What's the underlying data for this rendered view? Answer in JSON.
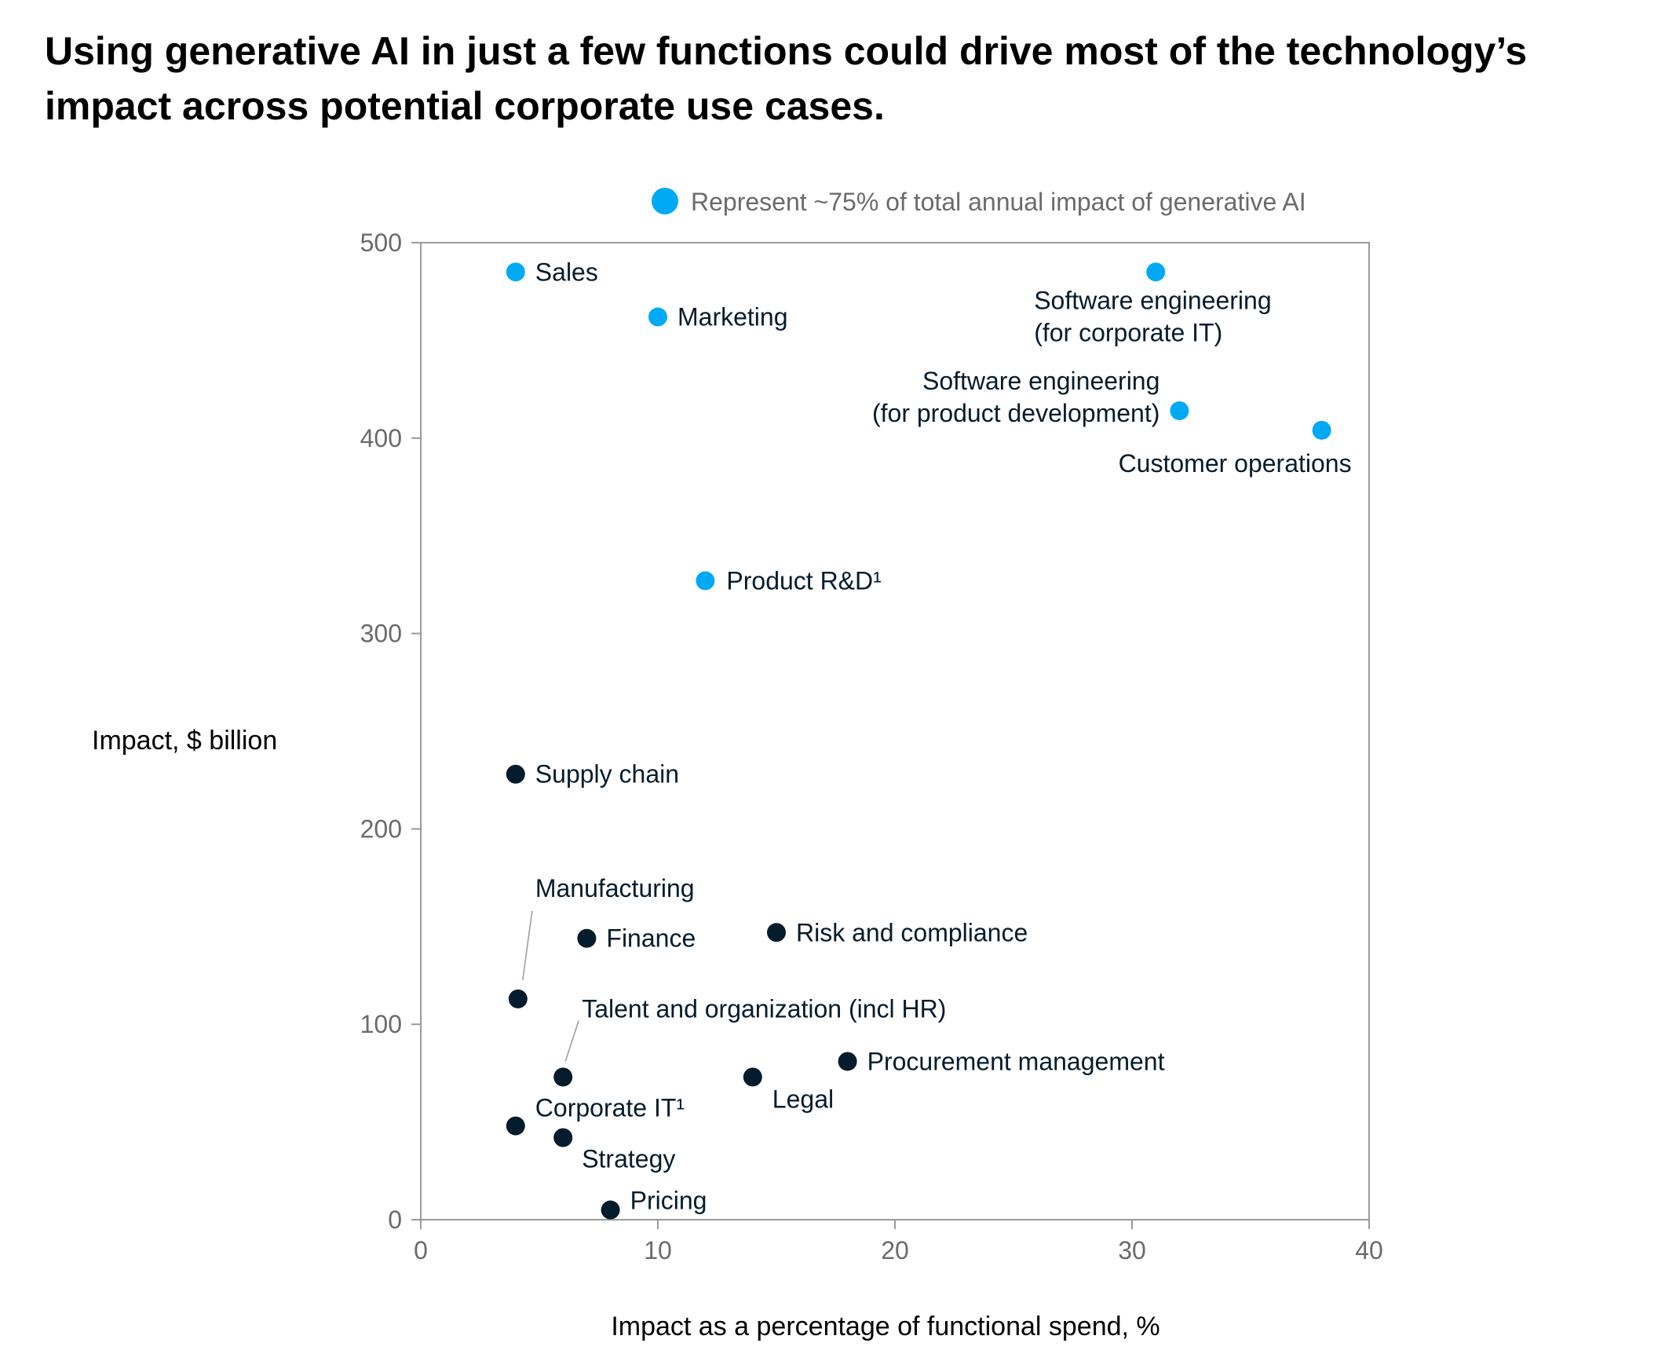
{
  "title": "Using generative AI in just a few functions could drive most of the technology’s impact across potential corporate use cases.",
  "legend": {
    "label": "Represent ~75% of total annual impact of generative AI",
    "color": "#00a9f4"
  },
  "colors": {
    "highlight": "#00a9f4",
    "other": "#051c2c",
    "axis": "#9a9a9a"
  },
  "chart_data": {
    "type": "scatter",
    "xlabel": "Impact as a percentage of functional spend, %",
    "ylabel_bold": "Impact,",
    "ylabel_rest": " $ billion",
    "xlim": [
      0,
      40
    ],
    "ylim": [
      0,
      500
    ],
    "xticks": [
      0,
      10,
      20,
      30,
      40
    ],
    "yticks": [
      0,
      100,
      200,
      300,
      400,
      500
    ],
    "grid": false,
    "legend_position": "top",
    "points": [
      {
        "label": "Sales",
        "x": 4,
        "y": 485,
        "highlight": true
      },
      {
        "label": "Marketing",
        "x": 10,
        "y": 462,
        "highlight": true
      },
      {
        "label": "Software engineering\n(for corporate IT)",
        "x": 31,
        "y": 485,
        "highlight": true
      },
      {
        "label": "Software engineering\n(for product development)",
        "x": 32,
        "y": 414,
        "highlight": true
      },
      {
        "label": "Customer operations",
        "x": 38,
        "y": 404,
        "highlight": true
      },
      {
        "label": "Product R&D¹",
        "x": 12,
        "y": 327,
        "highlight": true
      },
      {
        "label": "Supply chain",
        "x": 4,
        "y": 228,
        "highlight": false
      },
      {
        "label": "Manufacturing",
        "x": 4.1,
        "y": 113,
        "highlight": false
      },
      {
        "label": "Finance",
        "x": 7,
        "y": 144,
        "highlight": false
      },
      {
        "label": "Risk and compliance",
        "x": 15,
        "y": 147,
        "highlight": false
      },
      {
        "label": "Talent and organization (incl HR)",
        "x": 6,
        "y": 73,
        "highlight": false
      },
      {
        "label": "Procurement management",
        "x": 18,
        "y": 81,
        "highlight": false
      },
      {
        "label": "Legal",
        "x": 14,
        "y": 73,
        "highlight": false
      },
      {
        "label": "Corporate IT¹",
        "x": 4,
        "y": 48,
        "highlight": false
      },
      {
        "label": "Strategy",
        "x": 6,
        "y": 42,
        "highlight": false
      },
      {
        "label": "Pricing",
        "x": 8,
        "y": 5,
        "highlight": false
      }
    ]
  }
}
